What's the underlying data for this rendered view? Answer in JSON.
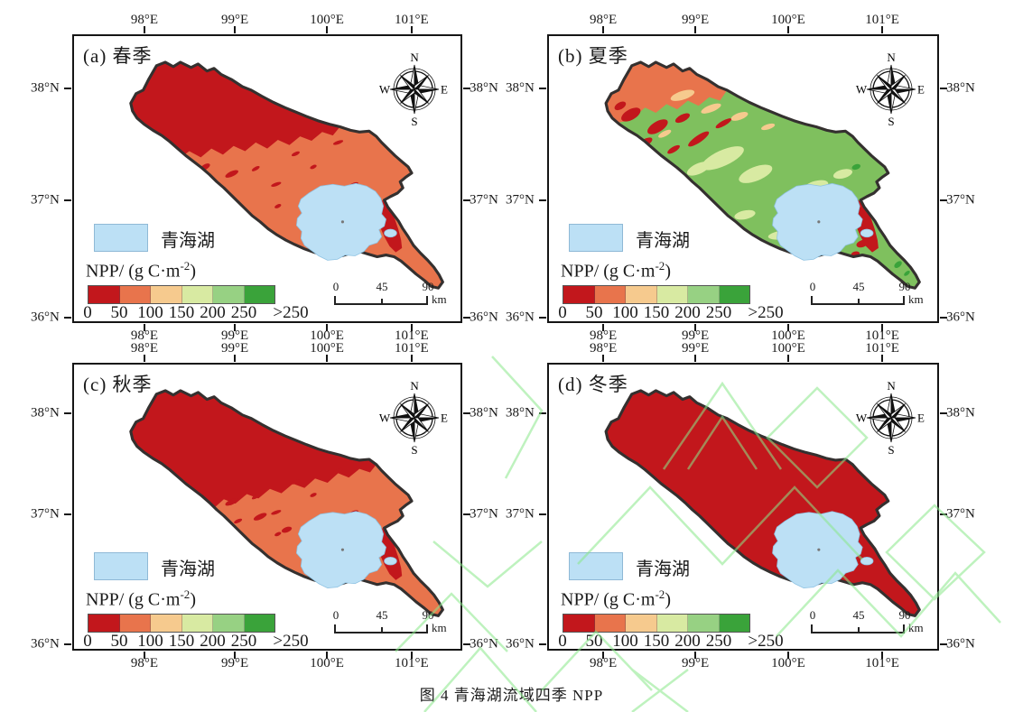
{
  "caption": "图 4  青海湖流域四季 NPP",
  "panels": [
    {
      "label": "(a) 春季"
    },
    {
      "label": "(b) 夏季"
    },
    {
      "label": "(c) 秋季"
    },
    {
      "label": "(d) 冬季"
    }
  ],
  "axes": {
    "lon": [
      "98°E",
      "99°E",
      "100°E",
      "101°E"
    ],
    "lat": [
      "38°N",
      "37°N",
      "36°N"
    ]
  },
  "compass": {
    "n": "N",
    "e": "E",
    "s": "S",
    "w": "W"
  },
  "legend": {
    "lake_label": "青海湖",
    "npp_unit_prefix": "NPP/ (g C·m",
    "npp_unit_exponent": "-2",
    "npp_unit_suffix": ")",
    "class_labels": [
      "0",
      "50",
      "100",
      "150",
      "200",
      "250",
      ">250"
    ],
    "ramp_colors": [
      "#c2171c",
      "#e8744c",
      "#f6ca8e",
      "#d8eaa2",
      "#97d183",
      "#3aa33a"
    ]
  },
  "scalebar": {
    "labels": [
      "0",
      "45",
      "90"
    ],
    "unit": "km"
  },
  "colors": {
    "dark_red": "#c2171c",
    "salmon": "#e8744c",
    "tan": "#f6ca8e",
    "light_green": "#d8eaa2",
    "mid_green": "#7fc05e",
    "deep_green": "#3aa33a",
    "lake_blue": "#bce0f5",
    "outline": "#34302f",
    "watermark_green": "#8ae88a"
  }
}
